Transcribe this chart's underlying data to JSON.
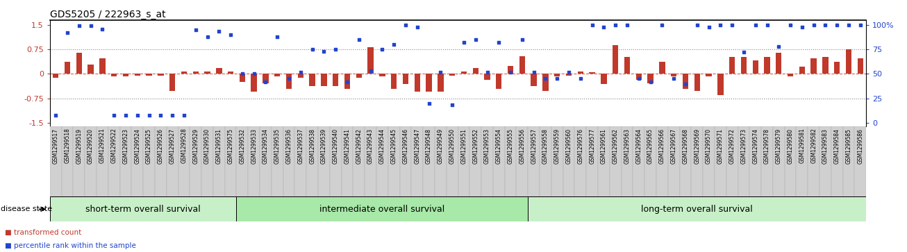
{
  "title": "GDS5205 / 222963_s_at",
  "samples": [
    "GSM1299517",
    "GSM1299518",
    "GSM1299519",
    "GSM1299520",
    "GSM1299521",
    "GSM1299522",
    "GSM1299523",
    "GSM1299524",
    "GSM1299525",
    "GSM1299526",
    "GSM1299527",
    "GSM1299528",
    "GSM1299529",
    "GSM1299530",
    "GSM1299531",
    "GSM1299575",
    "GSM1299532",
    "GSM1299533",
    "GSM1299534",
    "GSM1299535",
    "GSM1299536",
    "GSM1299537",
    "GSM1299538",
    "GSM1299539",
    "GSM1299540",
    "GSM1299541",
    "GSM1299542",
    "GSM1299543",
    "GSM1299544",
    "GSM1299545",
    "GSM1299546",
    "GSM1299547",
    "GSM1299548",
    "GSM1299549",
    "GSM1299550",
    "GSM1299551",
    "GSM1299552",
    "GSM1299553",
    "GSM1299554",
    "GSM1299555",
    "GSM1299556",
    "GSM1299557",
    "GSM1299558",
    "GSM1299559",
    "GSM1299560",
    "GSM1299576",
    "GSM1299577",
    "GSM1299561",
    "GSM1299562",
    "GSM1299563",
    "GSM1299564",
    "GSM1299565",
    "GSM1299566",
    "GSM1299567",
    "GSM1299568",
    "GSM1299569",
    "GSM1299570",
    "GSM1299571",
    "GSM1299572",
    "GSM1299573",
    "GSM1299574",
    "GSM1299578",
    "GSM1299579",
    "GSM1299580",
    "GSM1299581",
    "GSM1299582",
    "GSM1299583",
    "GSM1299584",
    "GSM1299585",
    "GSM1299586"
  ],
  "bar_values": [
    -0.12,
    0.38,
    0.65,
    0.28,
    0.48,
    -0.08,
    -0.08,
    -0.05,
    -0.05,
    -0.05,
    -0.52,
    0.08,
    0.08,
    0.08,
    0.18,
    0.08,
    -0.25,
    -0.55,
    -0.28,
    -0.08,
    -0.45,
    -0.12,
    -0.38,
    -0.38,
    -0.38,
    -0.45,
    -0.12,
    0.82,
    -0.08,
    -0.45,
    -0.32,
    -0.55,
    -0.55,
    -0.55,
    -0.05,
    0.08,
    0.18,
    -0.18,
    -0.45,
    0.25,
    0.55,
    -0.38,
    -0.52,
    -0.08,
    -0.05,
    0.08,
    0.05,
    -0.32,
    0.88,
    0.52,
    -0.18,
    -0.28,
    0.38,
    -0.08,
    -0.45,
    -0.52,
    -0.08,
    -0.65,
    0.52,
    0.52,
    0.42,
    0.52,
    0.65,
    -0.08,
    0.22,
    0.48,
    0.52,
    0.38,
    0.75,
    0.48
  ],
  "dot_values_pct": [
    8,
    92,
    99,
    99,
    96,
    8,
    8,
    8,
    8,
    8,
    8,
    8,
    95,
    88,
    94,
    90,
    50,
    50,
    42,
    88,
    45,
    52,
    75,
    73,
    75,
    42,
    85,
    53,
    75,
    80,
    100,
    98,
    20,
    52,
    18,
    82,
    85,
    52,
    82,
    52,
    85,
    52,
    45,
    45,
    52,
    45,
    100,
    98,
    100,
    100,
    45,
    42,
    100,
    45,
    40,
    100,
    98,
    100,
    100,
    72,
    100,
    100,
    78,
    100,
    98,
    100,
    100,
    100,
    100,
    100
  ],
  "group_boundaries": [
    0,
    16,
    41,
    70
  ],
  "group_labels": [
    "short-term overall survival",
    "intermediate overall survival",
    "long-term overall survival"
  ],
  "group_colors": [
    "#c8f0c8",
    "#a8e8a8",
    "#c8f0c8"
  ],
  "ylim": [
    -1.6,
    1.65
  ],
  "yticks_left": [
    -1.5,
    -0.75,
    0.0,
    0.75,
    1.5
  ],
  "ytick_labels_left": [
    "-1.5",
    "-0.75",
    "0",
    "0.75",
    "1.5"
  ],
  "yticks_right_pct": [
    0,
    25,
    50,
    75,
    100
  ],
  "hlines_dotted": [
    -0.75,
    0.75
  ],
  "hline_zero_color": "#c0392b",
  "bar_color": "#c0392b",
  "dot_color": "#2244cc",
  "bg_color": "#ffffff",
  "label_area_color": "#d8d8d8",
  "disease_state_label": "disease state",
  "legend_bar_label": "transformed count",
  "legend_dot_label": "percentile rank within the sample",
  "title_fontsize": 10,
  "tick_label_fontsize": 5.5,
  "group_label_fontsize": 9,
  "ytick_fontsize": 8,
  "n_samples": 70
}
